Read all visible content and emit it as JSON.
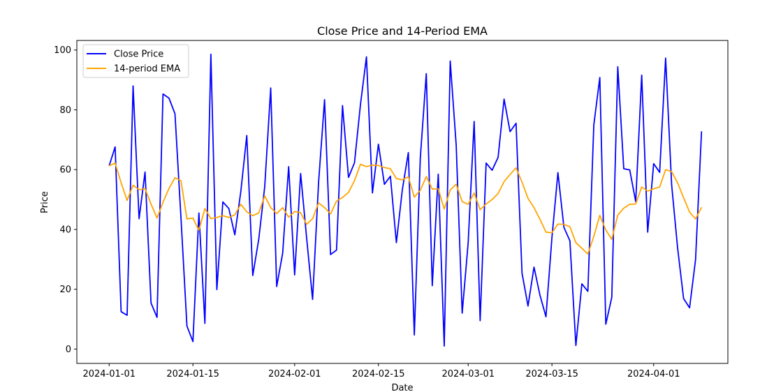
{
  "chart_data": {
    "type": "line",
    "title": "Close Price and 14-Period EMA",
    "xlabel": "Date",
    "ylabel": "Price",
    "start_date": "2024-01-01",
    "xlim_days": [
      -5.4,
      103.4
    ],
    "ylim": [
      -4.8,
      103.2
    ],
    "grid": false,
    "legend_position": "top-left",
    "x_ticks": [
      {
        "label": "2024-01-01",
        "day": 0
      },
      {
        "label": "2024-01-15",
        "day": 14
      },
      {
        "label": "2024-02-01",
        "day": 31
      },
      {
        "label": "2024-02-15",
        "day": 45
      },
      {
        "label": "2024-03-01",
        "day": 60
      },
      {
        "label": "2024-03-15",
        "day": 74
      },
      {
        "label": "2024-04-01",
        "day": 91
      }
    ],
    "y_ticks": [
      0,
      20,
      40,
      60,
      80,
      100
    ],
    "series": [
      {
        "name": "Close Price",
        "color": "#0000ff",
        "values": [
          61.3,
          67.6,
          12.5,
          11.3,
          88.0,
          43.6,
          59.2,
          15.4,
          10.6,
          85.3,
          83.9,
          78.7,
          44.0,
          7.7,
          2.5,
          45.5,
          8.6,
          98.6,
          19.9,
          49.2,
          47.0,
          38.2,
          52.6,
          71.4,
          24.6,
          36.7,
          54.3,
          87.3,
          20.9,
          32.1,
          61.0,
          24.8,
          58.7,
          37.2,
          16.6,
          55.7,
          83.4,
          31.6,
          33.1,
          81.4,
          57.4,
          62.3,
          81.8,
          97.7,
          52.2,
          68.5,
          55.1,
          57.8,
          35.6,
          53.3,
          65.7,
          4.7,
          63.9,
          92.1,
          21.2,
          58.5,
          1.0,
          96.3,
          68.1,
          12.0,
          35.6,
          76.1,
          9.5,
          62.2,
          59.8,
          64.1,
          83.6,
          72.7,
          75.5,
          25.4,
          14.4,
          27.4,
          18.0,
          10.8,
          37.3,
          59.0,
          40.7,
          36.2,
          1.2,
          21.8,
          19.3,
          75.0,
          90.8,
          8.3,
          17.3,
          94.4,
          60.3,
          59.9,
          49.3,
          91.6,
          39.1,
          62.0,
          59.1,
          97.3,
          55.0,
          33.8,
          16.9,
          13.8,
          29.9,
          72.8
        ]
      },
      {
        "name": "14-period EMA",
        "color": "#ffa500",
        "values": [
          61.3,
          62.2,
          55.6,
          49.7,
          54.8,
          53.3,
          53.6,
          48.5,
          43.8,
          49.1,
          53.7,
          57.3,
          56.3,
          43.5,
          43.8,
          39.7,
          47.0,
          43.6,
          44.0,
          44.6,
          44.0,
          44.9,
          48.4,
          45.9,
          44.6,
          45.5,
          51.2,
          47.3,
          45.3,
          47.3,
          44.1,
          46.0,
          45.6,
          41.7,
          43.6,
          48.9,
          47.3,
          45.2,
          49.5,
          50.7,
          52.4,
          56.3,
          61.8,
          61.0,
          61.5,
          61.4,
          60.7,
          60.3,
          57.0,
          56.6,
          57.6,
          50.8,
          53.1,
          57.7,
          53.5,
          53.6,
          46.8,
          53.2,
          55.1,
          49.3,
          48.4,
          52.2,
          46.6,
          48.5,
          50.0,
          52.0,
          56.0,
          58.4,
          60.6,
          55.8,
          50.4,
          47.3,
          43.4,
          39.1,
          38.9,
          41.8,
          41.7,
          40.9,
          35.6,
          33.7,
          31.8,
          37.7,
          44.7,
          39.8,
          36.7,
          44.8,
          47.1,
          48.4,
          48.5,
          54.2,
          52.8,
          53.6,
          54.2,
          60.0,
          59.3,
          55.6,
          50.6,
          45.8,
          43.5,
          47.4
        ]
      }
    ]
  }
}
